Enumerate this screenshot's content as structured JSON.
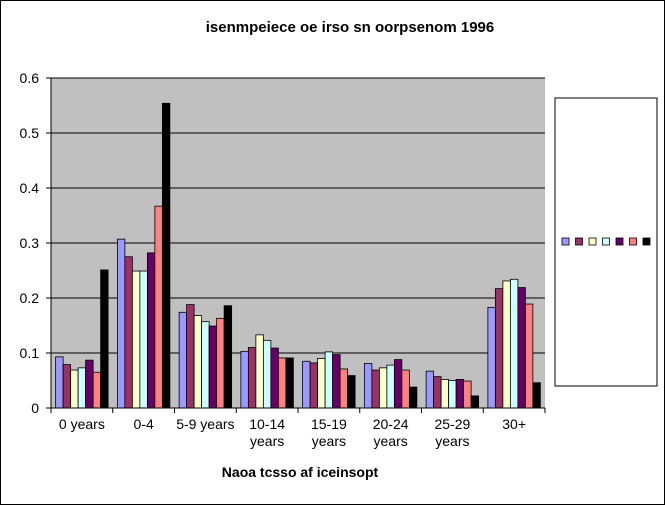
{
  "chart_data": {
    "type": "bar",
    "title": "isenmpeiece oe irso sn oorpsenom 1996",
    "xlabel": "Naoa tcsso af iceinsopt",
    "ylabel": "",
    "ylim": [
      0,
      0.6
    ],
    "yticks": [
      "0",
      "0.1",
      "0.2",
      "0.3",
      "0.4",
      "0.5",
      "0.6"
    ],
    "grid": true,
    "legend_position": "right",
    "categories": [
      [
        "0 years"
      ],
      [
        "0-4"
      ],
      [
        "5-9 years"
      ],
      [
        "10-14",
        "years"
      ],
      [
        "15-19",
        "years"
      ],
      [
        "20-24",
        "years"
      ],
      [
        "25-29",
        "years"
      ],
      [
        "30+"
      ]
    ],
    "series": [
      {
        "color": "#9999FF",
        "values": [
          0.093,
          0.307,
          0.174,
          0.103,
          0.085,
          0.081,
          0.067,
          0.183
        ]
      },
      {
        "color": "#993366",
        "values": [
          0.079,
          0.275,
          0.188,
          0.11,
          0.082,
          0.069,
          0.057,
          0.217
        ]
      },
      {
        "color": "#FFFFCC",
        "values": [
          0.069,
          0.249,
          0.168,
          0.133,
          0.09,
          0.073,
          0.052,
          0.231
        ]
      },
      {
        "color": "#CCFFFF",
        "values": [
          0.073,
          0.249,
          0.157,
          0.123,
          0.102,
          0.078,
          0.05,
          0.234
        ]
      },
      {
        "color": "#660066",
        "values": [
          0.087,
          0.282,
          0.149,
          0.109,
          0.097,
          0.088,
          0.052,
          0.219
        ]
      },
      {
        "color": "#FF8080",
        "values": [
          0.065,
          0.367,
          0.163,
          0.091,
          0.071,
          0.069,
          0.049,
          0.189
        ]
      },
      {
        "color": "#000000",
        "values": [
          0.251,
          0.554,
          0.186,
          0.091,
          0.059,
          0.038,
          0.022,
          0.046
        ]
      }
    ]
  }
}
